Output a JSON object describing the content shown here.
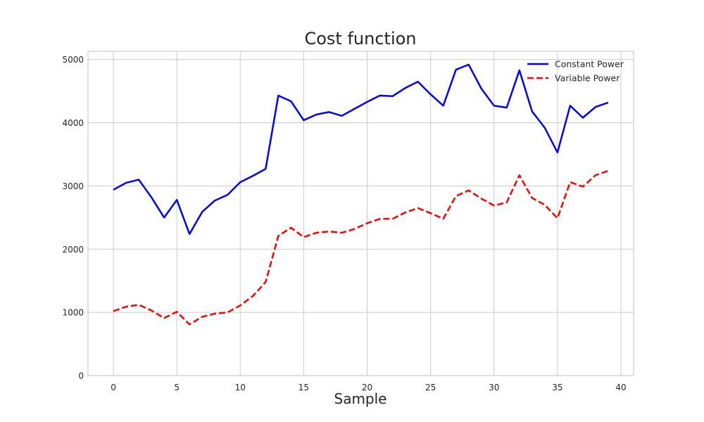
{
  "chart_data": {
    "type": "line",
    "title": "Cost function",
    "xlabel": "Sample",
    "ylabel": "",
    "xlim": [
      -2,
      41
    ],
    "ylim": [
      0,
      5130
    ],
    "xticks": [
      0,
      5,
      10,
      15,
      20,
      25,
      30,
      35,
      40
    ],
    "yticks": [
      0,
      1000,
      2000,
      3000,
      4000,
      5000
    ],
    "grid": true,
    "legend_position": "top-right",
    "x": [
      0,
      1,
      2,
      3,
      4,
      5,
      6,
      7,
      8,
      9,
      10,
      11,
      12,
      13,
      14,
      15,
      16,
      17,
      18,
      19,
      20,
      21,
      22,
      23,
      24,
      25,
      26,
      27,
      28,
      29,
      30,
      31,
      32,
      33,
      34,
      35,
      36,
      37,
      38,
      39
    ],
    "series": [
      {
        "name": "Constant Power",
        "color": "#0000ff",
        "style": "solid",
        "values": [
          2940,
          3050,
          3100,
          2820,
          2500,
          2780,
          2240,
          2590,
          2770,
          2860,
          3060,
          3160,
          3270,
          4430,
          4340,
          4040,
          4130,
          4170,
          4110,
          4220,
          4330,
          4430,
          4420,
          4550,
          4650,
          4450,
          4270,
          4840,
          4920,
          4540,
          4270,
          4240,
          4830,
          4180,
          3920,
          3530,
          4270,
          4080,
          4250,
          4320
        ]
      },
      {
        "name": "Variable Power",
        "color": "#ff0000",
        "style": "dashed",
        "values": [
          1020,
          1090,
          1120,
          1030,
          910,
          1010,
          810,
          930,
          980,
          1000,
          1110,
          1260,
          1480,
          2210,
          2340,
          2190,
          2260,
          2280,
          2260,
          2320,
          2410,
          2480,
          2480,
          2580,
          2650,
          2570,
          2480,
          2840,
          2930,
          2800,
          2690,
          2740,
          3170,
          2810,
          2700,
          2490,
          3060,
          2990,
          3170,
          3240
        ]
      }
    ]
  }
}
